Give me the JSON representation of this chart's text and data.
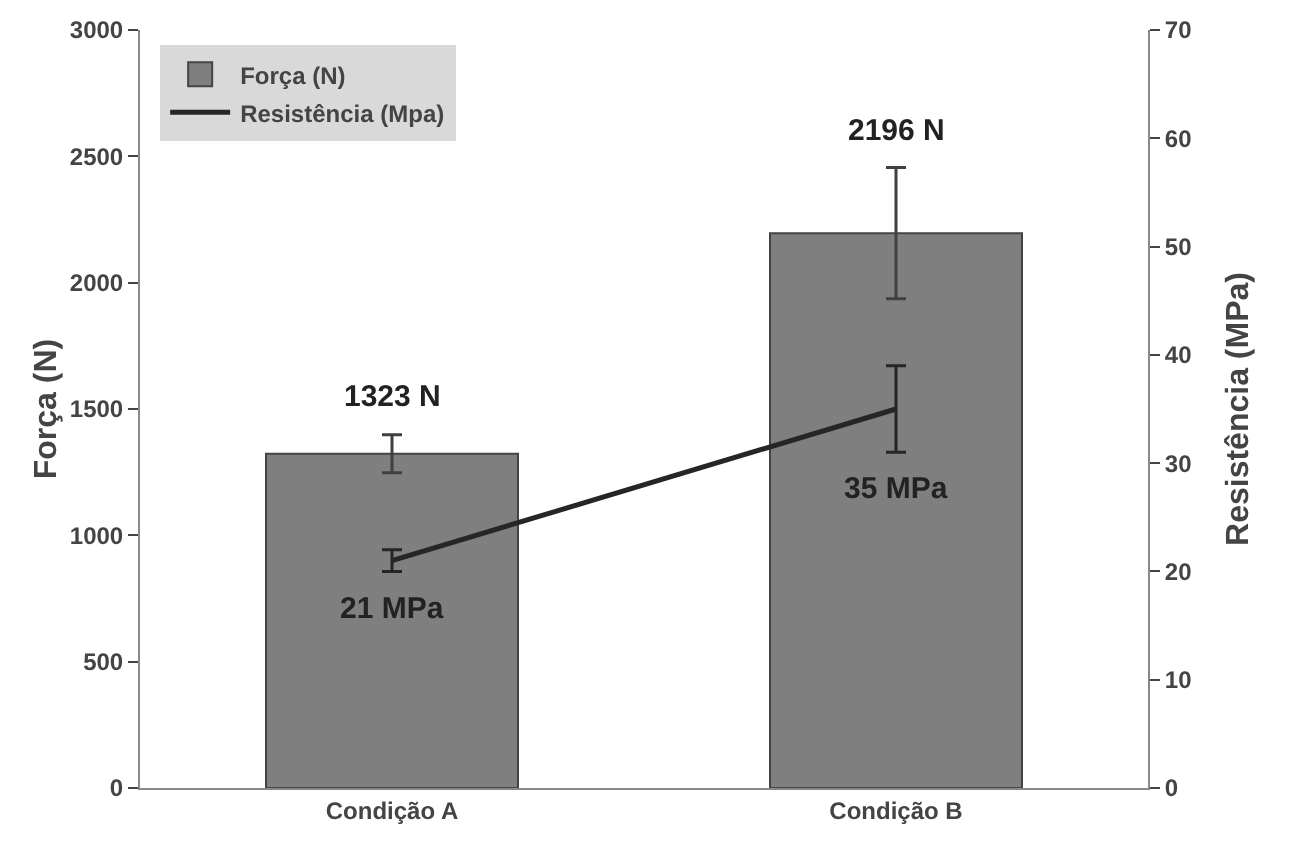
{
  "chart_data": {
    "type": "bar",
    "categories": [
      "Condição A",
      "Condição B"
    ],
    "series": [
      {
        "name": "Força (N)",
        "color": "#7f7f7f",
        "values": [
          1323,
          2196
        ],
        "errors": [
          75,
          260
        ],
        "value_labels": [
          "1323 N",
          "2196 N"
        ]
      },
      {
        "name": "Resistência (Mpa)",
        "type": "line",
        "axis": "y2",
        "color": "#262626",
        "values": [
          21,
          35
        ],
        "errors": [
          1,
          4
        ],
        "value_labels": [
          "21 MPa",
          "35 MPa"
        ]
      }
    ],
    "ylabel": "Força (N)",
    "y2label": "Resistência (MPa)",
    "ylim": [
      0,
      3000
    ],
    "yticks": [
      0,
      500,
      1000,
      1500,
      2000,
      2500,
      3000
    ],
    "y2lim": [
      0,
      70
    ],
    "y2ticks": [
      0,
      10,
      20,
      30,
      40,
      50,
      60,
      70
    ],
    "legend": "top left",
    "grid": false
  }
}
